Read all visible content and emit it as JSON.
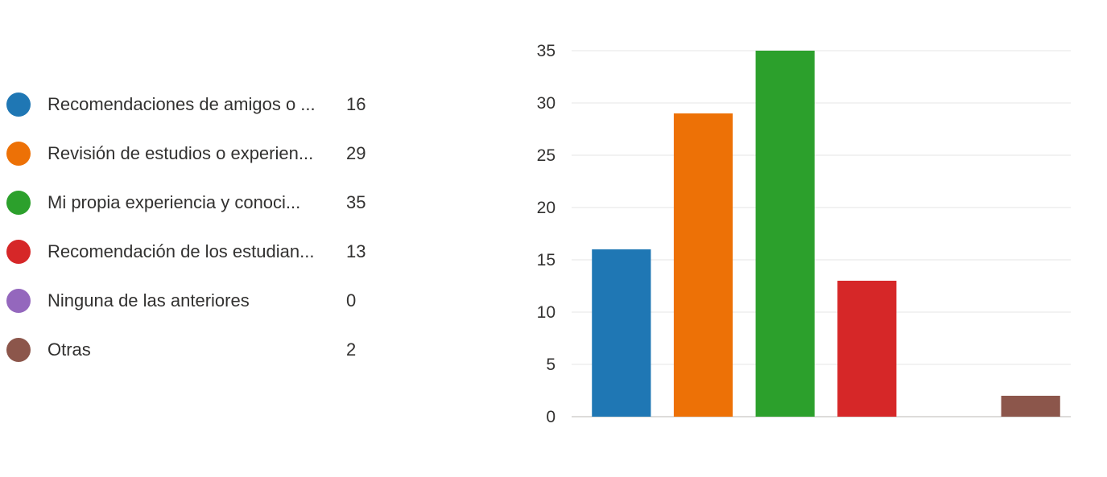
{
  "chart_data": {
    "type": "bar",
    "categories": [
      "Recomendaciones de amigos o ...",
      "Revisión de estudios o experien...",
      "Mi propia experiencia y conoci...",
      "Recomendación de los estudian...",
      "Ninguna de las anteriores",
      "Otras"
    ],
    "values": [
      16,
      29,
      35,
      13,
      0,
      2
    ],
    "colors": [
      "#1f77b4",
      "#ed7106",
      "#2ca02c",
      "#d62728",
      "#9467bd",
      "#8c564b"
    ],
    "ylim": [
      0,
      35
    ],
    "yticks": [
      0,
      5,
      10,
      15,
      20,
      25,
      30,
      35
    ],
    "grid": true,
    "legend": "left"
  }
}
